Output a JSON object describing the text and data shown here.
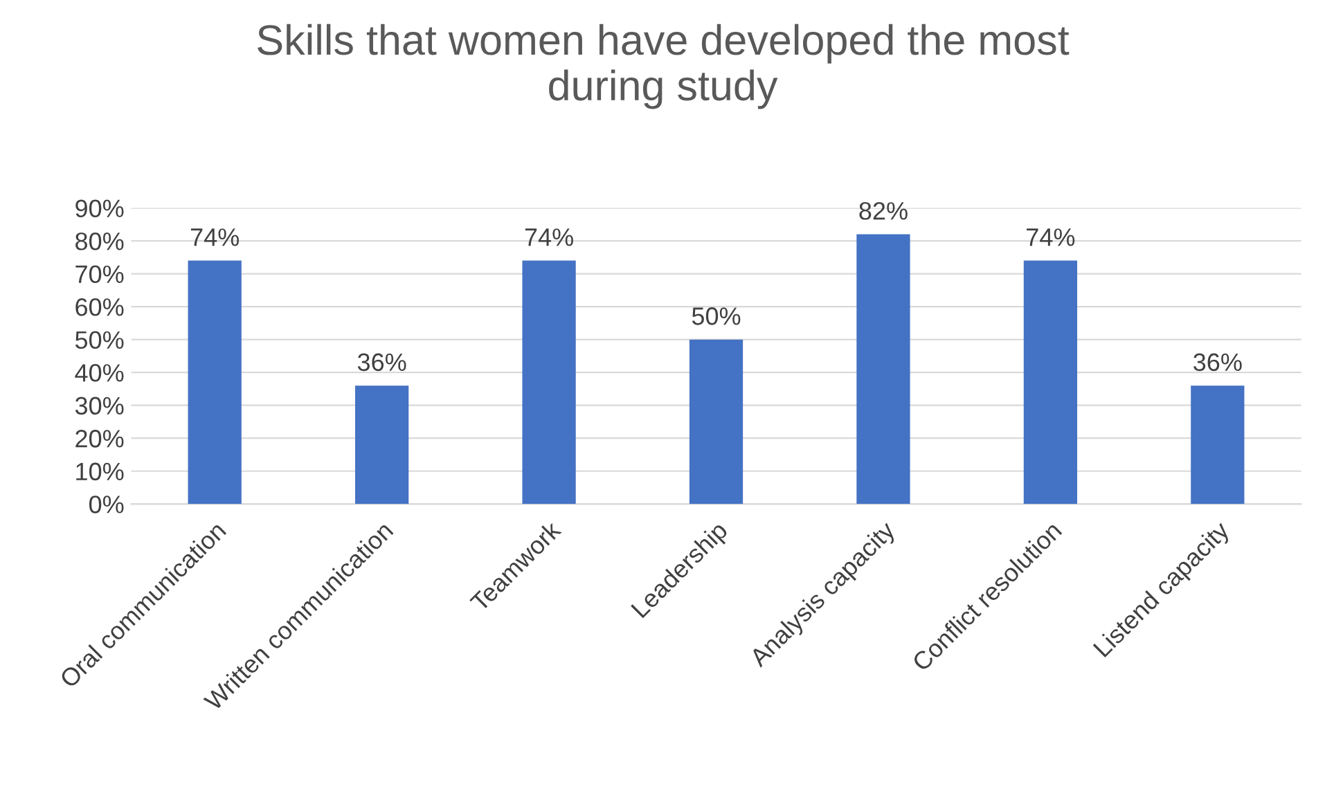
{
  "chart_data": {
    "type": "bar",
    "title": "Skills that women have developed the most\nduring study",
    "categories": [
      "Oral communication",
      "Written communication",
      "Teamwork",
      "Leadership",
      "Analysis capacity",
      "Conflict resolution",
      "Listend capacity"
    ],
    "values": [
      74,
      36,
      74,
      50,
      82,
      74,
      36
    ],
    "value_labels": [
      "74%",
      "36%",
      "74%",
      "50%",
      "82%",
      "74%",
      "36%"
    ],
    "color": "#4472c4",
    "ylim": [
      0,
      90
    ],
    "yticks": [
      {
        "value": 0,
        "label": "0%"
      },
      {
        "value": 10,
        "label": "10%"
      },
      {
        "value": 20,
        "label": "20%"
      },
      {
        "value": 30,
        "label": "30%"
      },
      {
        "value": 40,
        "label": "40%"
      },
      {
        "value": 50,
        "label": "50%"
      },
      {
        "value": 60,
        "label": "60%"
      },
      {
        "value": 70,
        "label": "70%"
      },
      {
        "value": 80,
        "label": "80%"
      },
      {
        "value": 90,
        "label": "90%"
      }
    ],
    "grid": "y",
    "legend": false
  }
}
